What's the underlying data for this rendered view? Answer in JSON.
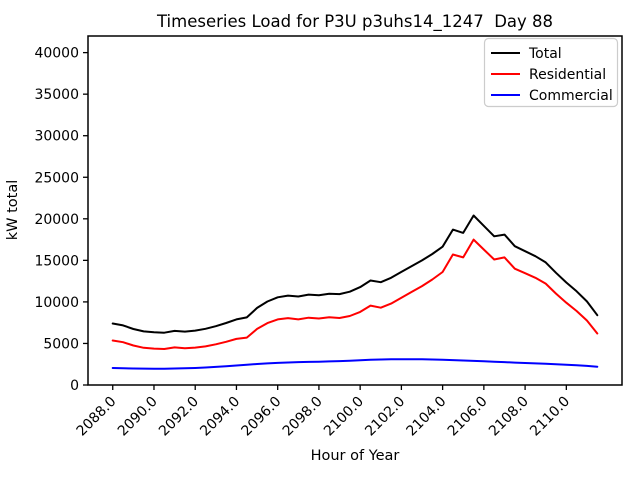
{
  "chart_data": {
    "type": "line",
    "title": "Timeseries Load for P3U p3uhs14_1247  Day 88",
    "xlabel": "Hour of Year",
    "ylabel": "kW total",
    "x": [
      2088,
      2088.5,
      2089,
      2089.5,
      2090,
      2090.5,
      2091,
      2091.5,
      2092,
      2092.5,
      2093,
      2093.5,
      2094,
      2094.5,
      2095,
      2095.5,
      2096,
      2096.5,
      2097,
      2097.5,
      2098,
      2098.5,
      2099,
      2099.5,
      2100,
      2100.5,
      2101,
      2101.5,
      2102,
      2102.5,
      2103,
      2103.5,
      2104,
      2104.5,
      2105,
      2105.5,
      2106,
      2106.5,
      2107,
      2107.5,
      2108,
      2108.5,
      2109,
      2109.5,
      2110,
      2110.5,
      2111,
      2111.5
    ],
    "series": [
      {
        "name": "Total",
        "color": "#000000",
        "values": [
          7400,
          7170,
          6740,
          6450,
          6340,
          6295,
          6510,
          6430,
          6550,
          6760,
          7080,
          7460,
          7900,
          8140,
          9280,
          10050,
          10560,
          10760,
          10650,
          10880,
          10810,
          10990,
          10940,
          11230,
          11780,
          12580,
          12370,
          12900,
          13610,
          14305,
          14990,
          15770,
          16640,
          18700,
          18300,
          20400,
          19150,
          17900,
          18100,
          16700,
          16100,
          15500,
          14750,
          13500,
          12340,
          11280,
          10060,
          8400
        ]
      },
      {
        "name": "Residential",
        "color": "#ff0000",
        "values": [
          5350,
          5150,
          4750,
          4480,
          4380,
          4330,
          4530,
          4420,
          4500,
          4650,
          4900,
          5200,
          5550,
          5700,
          6750,
          7450,
          7900,
          8050,
          7900,
          8100,
          8000,
          8150,
          8060,
          8300,
          8800,
          9550,
          9300,
          9800,
          10500,
          11200,
          11900,
          12700,
          13600,
          15700,
          15350,
          17500,
          16300,
          15100,
          15350,
          14000,
          13450,
          12900,
          12200,
          11000,
          9900,
          8900,
          7760,
          6200
        ]
      },
      {
        "name": "Commercial",
        "color": "#0000ff",
        "values": [
          2050,
          2020,
          1990,
          1970,
          1960,
          1965,
          1980,
          2010,
          2050,
          2110,
          2180,
          2260,
          2350,
          2440,
          2530,
          2600,
          2660,
          2710,
          2750,
          2780,
          2810,
          2840,
          2880,
          2930,
          2980,
          3030,
          3070,
          3100,
          3110,
          3105,
          3090,
          3070,
          3040,
          3000,
          2950,
          2900,
          2850,
          2800,
          2750,
          2700,
          2650,
          2600,
          2550,
          2500,
          2440,
          2380,
          2300,
          2200
        ]
      }
    ],
    "xlim": [
      2086.8,
      2112.7
    ],
    "ylim": [
      0,
      42000
    ],
    "xticks": {
      "values": [
        2088,
        2090,
        2092,
        2094,
        2096,
        2098,
        2100,
        2102,
        2104,
        2106,
        2108,
        2110
      ],
      "labels": [
        "2088.0",
        "2090.0",
        "2092.0",
        "2094.0",
        "2096.0",
        "2098.0",
        "2100.0",
        "2102.0",
        "2104.0",
        "2106.0",
        "2108.0",
        "2110.0"
      ],
      "rotation": -45
    },
    "yticks": {
      "values": [
        0,
        5000,
        10000,
        15000,
        20000,
        25000,
        30000,
        35000,
        40000
      ],
      "labels": [
        "0",
        "5000",
        "10000",
        "15000",
        "20000",
        "25000",
        "30000",
        "35000",
        "40000"
      ]
    },
    "legend": {
      "position": "upper right",
      "entries": [
        "Total",
        "Residential",
        "Commercial"
      ],
      "border_color": "#cccccc",
      "background": "#ffffff"
    },
    "grid": false,
    "colors": {
      "axes": "#000000",
      "figure_background": "#ffffff"
    }
  }
}
